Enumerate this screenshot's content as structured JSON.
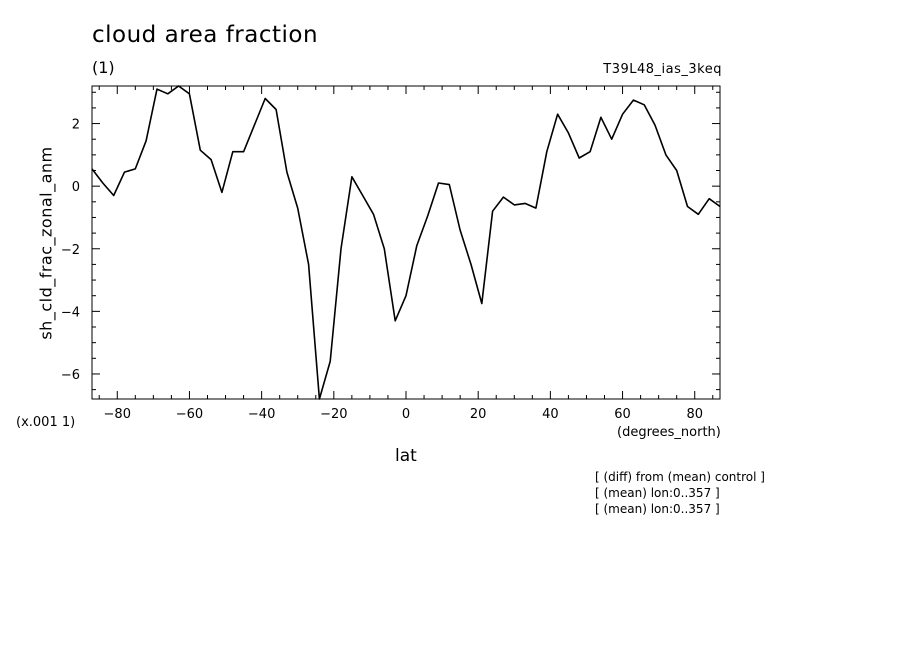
{
  "chart_data": {
    "type": "line",
    "title": "cloud area fraction",
    "units": "(1)",
    "run_label": "T39L48_ias_3keq",
    "xlabel": "lat",
    "xunits": "(degrees_north)",
    "ylabel": "sh_cld_frac_zonal_anm",
    "yscale_label": "(x.001 1)",
    "xlim": [
      -87,
      87
    ],
    "ylim": [
      -6.8,
      3.2
    ],
    "xticks": [
      -80,
      -60,
      -40,
      -20,
      0,
      20,
      40,
      60,
      80
    ],
    "yticks": [
      2,
      0,
      -2,
      -4,
      -6
    ],
    "grid": false,
    "x": [
      -87.0,
      -84.0,
      -81.0,
      -78.0,
      -75.0,
      -72.0,
      -69.0,
      -66.0,
      -63.0,
      -60.0,
      -57.0,
      -54.0,
      -51.0,
      -48.0,
      -45.0,
      -42.0,
      -39.0,
      -36.0,
      -33.0,
      -30.0,
      -27.0,
      -24.0,
      -21.0,
      -18.0,
      -15.0,
      -12.0,
      -9.0,
      -6.0,
      -3.0,
      0.0,
      3.0,
      6.0,
      9.0,
      12.0,
      15.0,
      18.0,
      21.0,
      24.0,
      27.0,
      30.0,
      33.0,
      36.0,
      39.0,
      42.0,
      45.0,
      48.0,
      51.0,
      54.0,
      57.0,
      60.0,
      63.0,
      66.0,
      69.0,
      72.0,
      75.0,
      78.0,
      81.0,
      84.0,
      87.0
    ],
    "y": [
      0.55,
      0.1,
      -0.3,
      0.45,
      0.55,
      1.45,
      3.1,
      2.95,
      3.2,
      2.95,
      1.15,
      0.85,
      -0.2,
      1.1,
      1.1,
      1.95,
      2.8,
      2.45,
      0.45,
      -0.7,
      -2.5,
      -6.8,
      -5.6,
      -2.0,
      0.3,
      -0.3,
      -0.9,
      -2.0,
      -4.3,
      -3.5,
      -1.9,
      -0.95,
      0.1,
      0.05,
      -1.4,
      -2.5,
      -3.75,
      -0.8,
      -0.35,
      -0.6,
      -0.55,
      -0.7,
      1.1,
      2.3,
      1.7,
      0.9,
      1.1,
      2.2,
      1.5,
      2.3,
      2.75,
      2.6,
      1.95,
      1.0,
      0.5,
      -0.65,
      -0.9,
      -0.4,
      -0.65
    ]
  },
  "notes": [
    "[ (diff) from (mean) control ]",
    "[ (mean) lon:0..357 ]",
    "[ (mean) lon:0..357 ]"
  ]
}
